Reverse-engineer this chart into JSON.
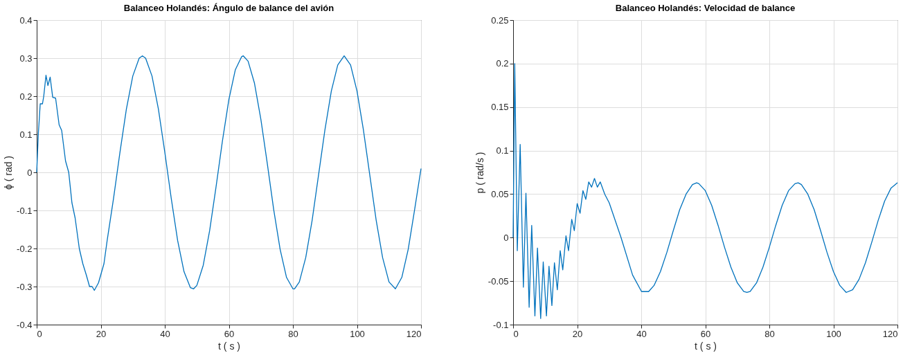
{
  "chart_data": [
    {
      "type": "line",
      "title": "Balanceo Holandés: Ángulo de balance del avión",
      "xlabel": "t ( s )",
      "ylabel": "ϕ ( rad )",
      "xlim": [
        0,
        120
      ],
      "ylim": [
        -0.4,
        0.4
      ],
      "xticks": [
        0,
        20,
        40,
        60,
        80,
        100,
        120
      ],
      "yticks": [
        -0.4,
        -0.3,
        -0.2,
        -0.1,
        0,
        0.1,
        0.2,
        0.3,
        0.4
      ],
      "grid": true,
      "x": [
        0,
        0.5,
        1.1,
        1.8,
        2.2,
        2.9,
        3.5,
        4.2,
        5,
        5.9,
        7,
        7.8,
        9,
        10,
        11,
        12,
        13.3,
        14.4,
        15.5,
        16.5,
        17.3,
        18,
        19.3,
        21,
        22,
        24,
        26,
        28,
        30,
        32,
        33,
        34,
        36,
        38,
        40,
        42,
        44,
        46,
        48,
        49,
        50,
        52,
        54,
        56,
        58,
        60,
        62,
        64,
        64.5,
        66,
        68,
        70,
        72,
        74,
        76,
        78,
        80,
        80.5,
        82,
        84,
        86,
        88,
        90,
        92,
        94,
        96,
        98,
        100,
        102,
        104,
        106,
        108,
        110,
        112,
        114,
        116,
        118,
        120
      ],
      "series": [
        {
          "color": "#0072bd",
          "values": [
            0,
            0.1,
            0.18,
            0.18,
            0.2,
            0.255,
            0.228,
            0.25,
            0.197,
            0.195,
            0.125,
            0.11,
            0.03,
            0,
            -0.08,
            -0.12,
            -0.2,
            -0.24,
            -0.27,
            -0.3,
            -0.3,
            -0.31,
            -0.29,
            -0.24,
            -0.179,
            -0.068,
            0.053,
            0.166,
            0.253,
            0.3,
            0.306,
            0.3,
            0.253,
            0.166,
            0.053,
            -0.068,
            -0.179,
            -0.261,
            -0.303,
            -0.306,
            -0.297,
            -0.244,
            -0.153,
            -0.038,
            0.083,
            0.191,
            0.269,
            0.304,
            0.306,
            0.292,
            0.234,
            0.139,
            0.023,
            -0.098,
            -0.202,
            -0.276,
            -0.306,
            -0.306,
            -0.288,
            -0.224,
            -0.126,
            -0.007,
            0.112,
            0.214,
            0.282,
            0.306,
            0.282,
            0.214,
            0.112,
            -0.007,
            -0.126,
            -0.224,
            -0.288,
            -0.306,
            -0.276,
            -0.202,
            -0.098,
            0.01
          ]
        }
      ]
    },
    {
      "type": "line",
      "title": "Balanceo Holandés: Velocidad de balance",
      "xlabel": "t ( s )",
      "ylabel": "p ( rad/s )",
      "xlim": [
        0,
        120
      ],
      "ylim": [
        -0.1,
        0.25
      ],
      "xticks": [
        0,
        20,
        40,
        60,
        80,
        100,
        120
      ],
      "yticks": [
        -0.1,
        -0.05,
        0,
        0.05,
        0.1,
        0.15,
        0.2,
        0.25
      ],
      "grid": true,
      "x": [
        0,
        0.5,
        1.3,
        2.2,
        3.2,
        4,
        5,
        5.8,
        6.8,
        7.6,
        8.6,
        9.4,
        10.4,
        11.2,
        12.1,
        12.9,
        13.8,
        14.7,
        15.5,
        16.5,
        17.3,
        18.3,
        19.1,
        20,
        20.9,
        21.8,
        22.7,
        23.6,
        24.5,
        25.4,
        26.3,
        27.2,
        28.6,
        30,
        33.7,
        37.3,
        40.1,
        42.3,
        44,
        46,
        48,
        50,
        52,
        54,
        56,
        57.3,
        58,
        60,
        62,
        64,
        66,
        68,
        70,
        72,
        73,
        74,
        76,
        78,
        80,
        82,
        84,
        86,
        88,
        89,
        90,
        92,
        94,
        96,
        98,
        100,
        102,
        104,
        106,
        108,
        110,
        112,
        114,
        116,
        118,
        120
      ],
      "series": [
        {
          "color": "#0072bd",
          "values": [
            0,
            0.2,
            -0.015,
            0.107,
            -0.057,
            0.051,
            -0.08,
            0.014,
            -0.09,
            -0.012,
            -0.093,
            -0.028,
            -0.09,
            -0.033,
            -0.078,
            -0.029,
            -0.06,
            -0.015,
            -0.037,
            0.002,
            -0.015,
            0.021,
            0.008,
            0.039,
            0.028,
            0.054,
            0.044,
            0.064,
            0.058,
            0.068,
            0.058,
            0.064,
            0.05,
            0.04,
            0,
            -0.043,
            -0.062,
            -0.062,
            -0.055,
            -0.039,
            -0.017,
            0.008,
            0.032,
            0.05,
            0.061,
            0.063,
            0.062,
            0.054,
            0.037,
            0.014,
            -0.011,
            -0.034,
            -0.052,
            -0.062,
            -0.063,
            -0.062,
            -0.052,
            -0.034,
            -0.011,
            0.014,
            0.037,
            0.054,
            0.062,
            0.063,
            0.061,
            0.05,
            0.032,
            0.008,
            -0.017,
            -0.039,
            -0.055,
            -0.063,
            -0.06,
            -0.048,
            -0.029,
            -0.005,
            0.02,
            0.042,
            0.057,
            0.063
          ]
        }
      ]
    }
  ]
}
